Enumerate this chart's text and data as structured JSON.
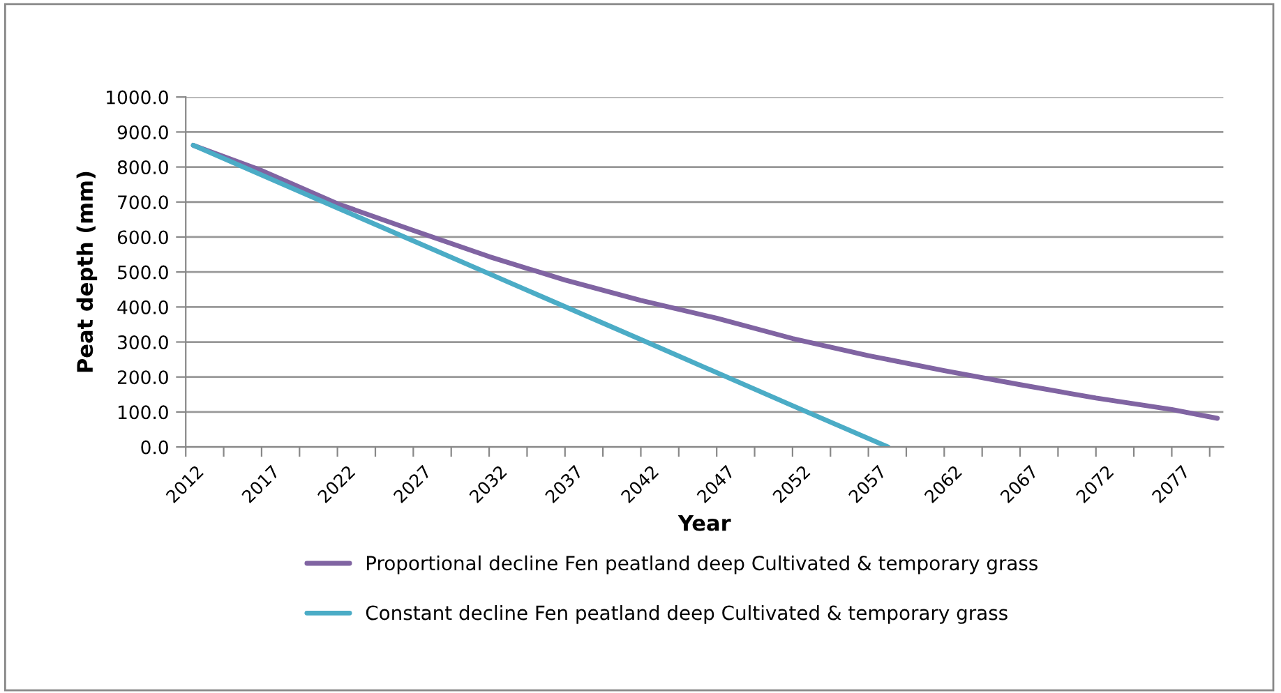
{
  "chart_data": {
    "type": "line",
    "xlabel": "Year",
    "ylabel": "Peat depth (mm)",
    "xlim": [
      2012,
      2080.4
    ],
    "xticks": [
      {
        "value": 2012,
        "label": "2012"
      },
      {
        "value": 2014.5,
        "label": null
      },
      {
        "value": 2017,
        "label": "2017"
      },
      {
        "value": 2019.5,
        "label": null
      },
      {
        "value": 2022,
        "label": "2022"
      },
      {
        "value": 2024.5,
        "label": null
      },
      {
        "value": 2027,
        "label": "2027"
      },
      {
        "value": 2029.5,
        "label": null
      },
      {
        "value": 2032,
        "label": "2032"
      },
      {
        "value": 2034.5,
        "label": null
      },
      {
        "value": 2037,
        "label": "2037"
      },
      {
        "value": 2039.5,
        "label": null
      },
      {
        "value": 2042,
        "label": "2042"
      },
      {
        "value": 2044.5,
        "label": null
      },
      {
        "value": 2047,
        "label": "2047"
      },
      {
        "value": 2049.5,
        "label": null
      },
      {
        "value": 2052,
        "label": "2052"
      },
      {
        "value": 2054.5,
        "label": null
      },
      {
        "value": 2057,
        "label": "2057"
      },
      {
        "value": 2059.5,
        "label": null
      },
      {
        "value": 2062,
        "label": "2062"
      },
      {
        "value": 2064.5,
        "label": null
      },
      {
        "value": 2067,
        "label": "2067"
      },
      {
        "value": 2069.5,
        "label": null
      },
      {
        "value": 2072,
        "label": "2072"
      },
      {
        "value": 2074.5,
        "label": null
      },
      {
        "value": 2077,
        "label": "2077"
      },
      {
        "value": 2079.5,
        "label": null
      }
    ],
    "ylim": [
      0,
      1000
    ],
    "yticks": [
      {
        "value": 0,
        "label": "0.0"
      },
      {
        "value": 100,
        "label": "100.0"
      },
      {
        "value": 200,
        "label": "200.0"
      },
      {
        "value": 300,
        "label": "300.0"
      },
      {
        "value": 400,
        "label": "400.0"
      },
      {
        "value": 500,
        "label": "500.0"
      },
      {
        "value": 600,
        "label": "600.0"
      },
      {
        "value": 700,
        "label": "700.0"
      },
      {
        "value": 800,
        "label": "800.0"
      },
      {
        "value": 900,
        "label": "900.0"
      },
      {
        "value": 1000,
        "label": "1000.0"
      }
    ],
    "grid": "y",
    "legend": "bottom",
    "marker": "none",
    "line_style": "solid",
    "series": [
      {
        "name": "Proportional decline Fen peatland deep Cultivated & temporary grass",
        "color": "#8064a2",
        "x": [
          2012.5,
          2017,
          2022,
          2027,
          2032,
          2037,
          2042,
          2047,
          2052,
          2057,
          2062,
          2067,
          2072,
          2077,
          2080
        ],
        "values": [
          862,
          790,
          695,
          619,
          544,
          477,
          419,
          368,
          310,
          261,
          218,
          178,
          140,
          107,
          82
        ]
      },
      {
        "name": "Constant decline Fen peatland deep Cultivated & temporary grass",
        "color": "#4bacc6",
        "x": [
          2012.5,
          2022,
          2032,
          2042,
          2052,
          2058.3
        ],
        "values": [
          862,
          683,
          495,
          307,
          118,
          0
        ]
      }
    ]
  }
}
